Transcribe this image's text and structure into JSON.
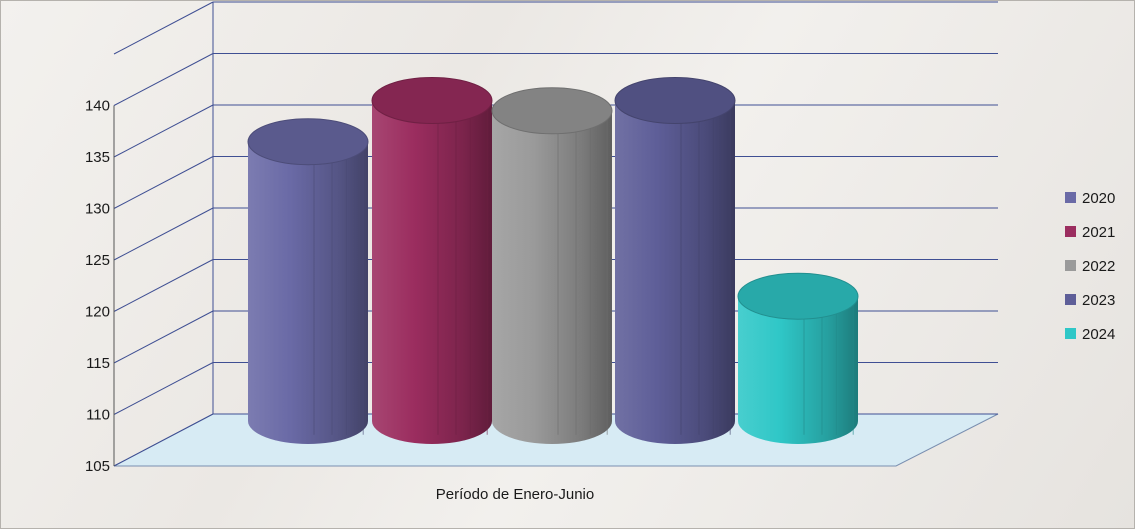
{
  "chart_data": {
    "type": "bar",
    "style": "3d-cylinder",
    "categories": [
      "Período de Enero-Junio"
    ],
    "series": [
      {
        "name": "2020",
        "values": [
          136
        ],
        "color": "#6a6aa6"
      },
      {
        "name": "2021",
        "values": [
          140
        ],
        "color": "#9b2d5f"
      },
      {
        "name": "2022",
        "values": [
          139
        ],
        "color": "#9a9a9a"
      },
      {
        "name": "2023",
        "values": [
          140
        ],
        "color": "#5e5e98"
      },
      {
        "name": "2024",
        "values": [
          121
        ],
        "color": "#2fc7c7"
      }
    ],
    "ylim": [
      105,
      140
    ],
    "yticks": [
      "105",
      "110",
      "115",
      "120",
      "125",
      "130",
      "135",
      "140"
    ],
    "grid": true,
    "legend_position": "right",
    "floor_color": "#d7ebf4",
    "gridline_color": "#3f4f93"
  }
}
